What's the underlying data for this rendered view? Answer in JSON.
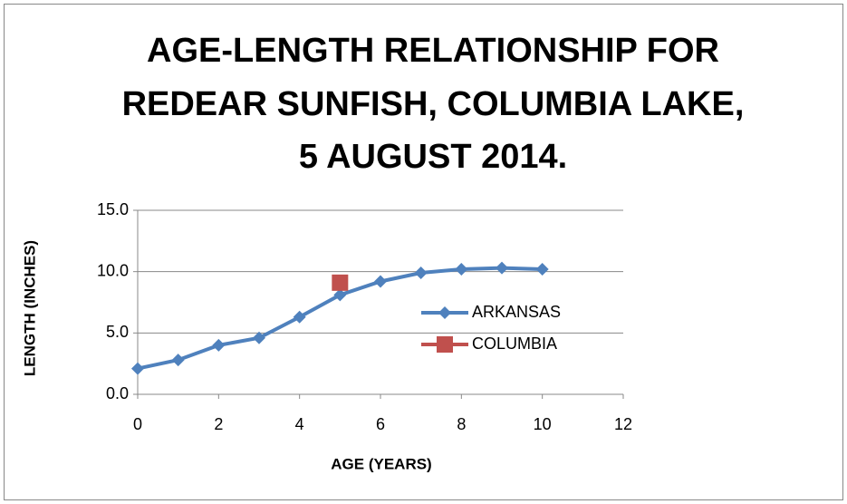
{
  "chart_data": {
    "type": "line",
    "title": [
      "AGE-LENGTH RELATIONSHIP FOR",
      "REDEAR SUNFISH, COLUMBIA LAKE,",
      "5 AUGUST 2014."
    ],
    "x_label": "AGE (YEARS)",
    "y_label": "LENGTH (INCHES)",
    "xlim": [
      0,
      12
    ],
    "xticks": [
      0,
      2,
      4,
      6,
      8,
      10,
      12
    ],
    "ylim": [
      0,
      15
    ],
    "yticks": [
      {
        "value": 0,
        "label": "0.0"
      },
      {
        "value": 5,
        "label": "5.0"
      },
      {
        "value": 10,
        "label": "10.0"
      },
      {
        "value": 15,
        "label": "15.0"
      }
    ],
    "grid": true,
    "legend": "right",
    "series": [
      {
        "name": "ARKANSAS",
        "color": "#4f81bd",
        "marker": "diamond",
        "x": [
          0,
          1,
          2,
          3,
          4,
          5,
          6,
          7,
          8,
          9,
          10
        ],
        "values": [
          2.1,
          2.8,
          4.0,
          4.6,
          6.3,
          8.1,
          9.2,
          9.9,
          10.2,
          10.3,
          10.2
        ]
      },
      {
        "name": "COLUMBIA",
        "color": "#c0504d",
        "marker": "square",
        "x": [
          5
        ],
        "values": [
          9.1
        ]
      }
    ]
  }
}
